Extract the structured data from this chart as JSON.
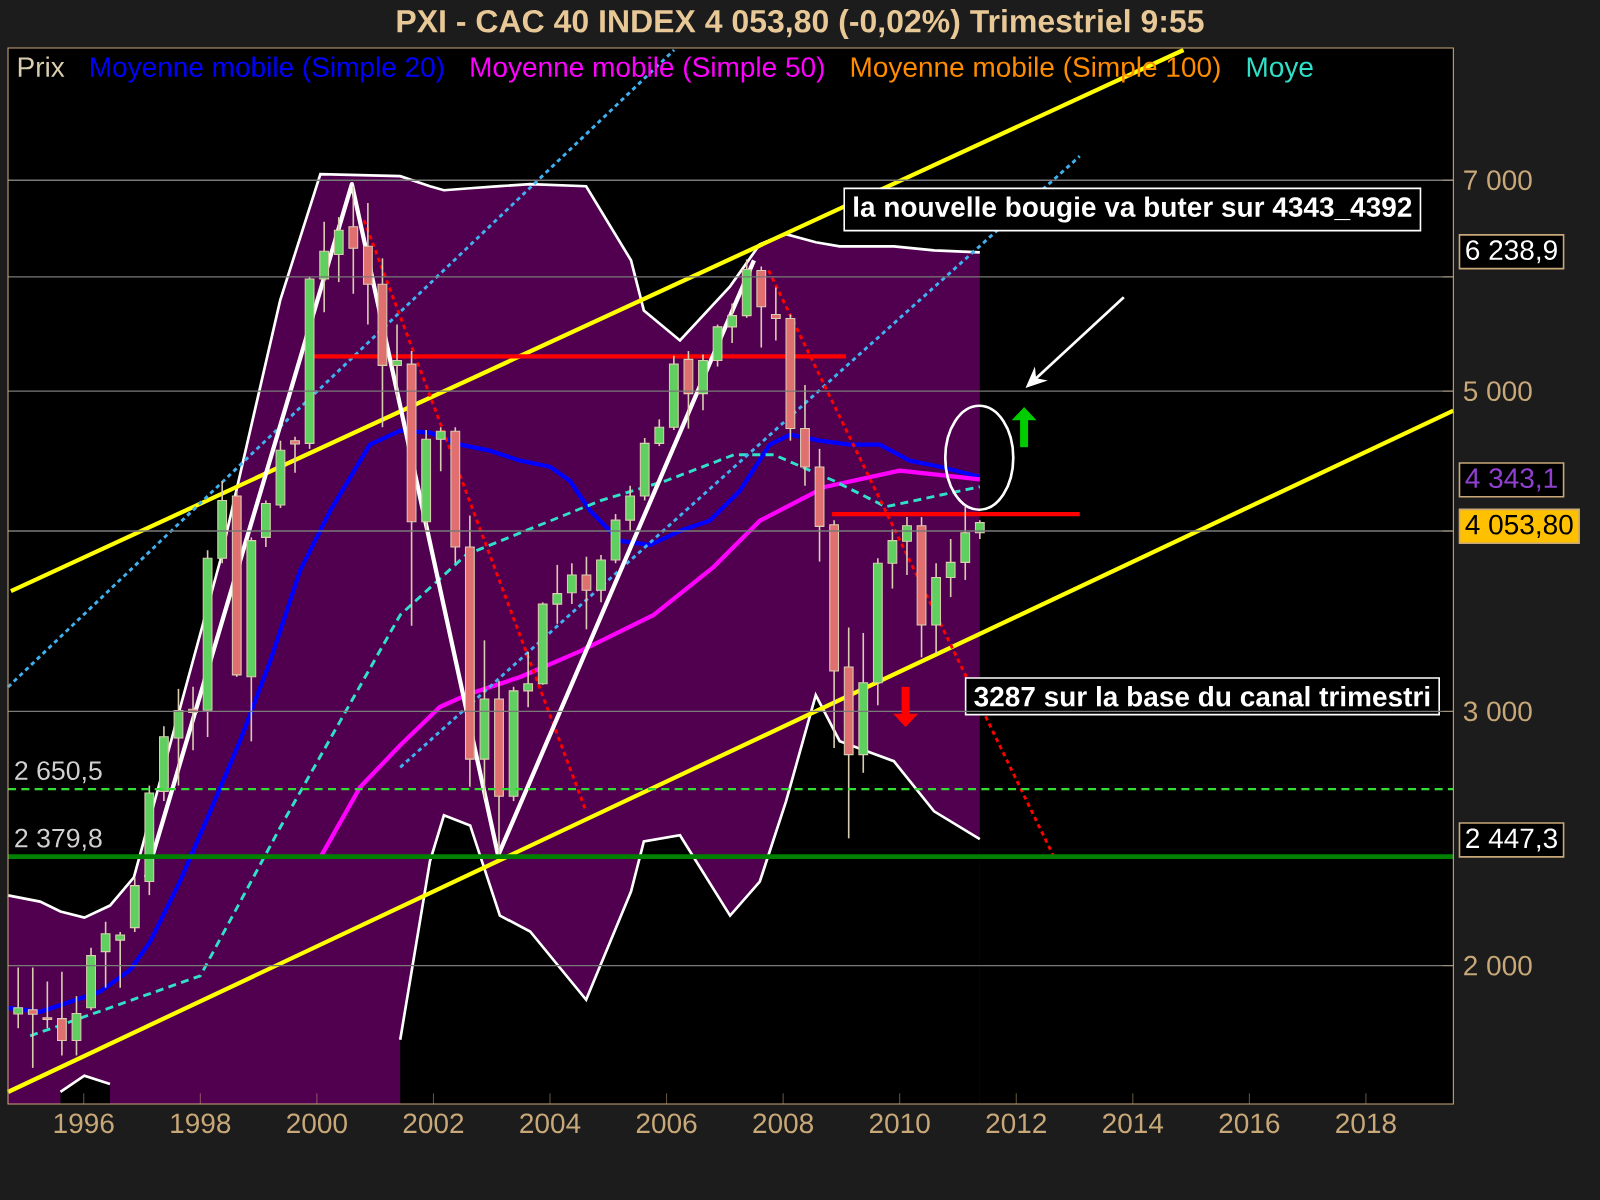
{
  "chart_data": {
    "type": "candlestick",
    "title": "PXI - CAC 40 INDEX    4 053,80 (-0,02%)    Trimestriel  9:55",
    "xlim": [
      1994.7,
      2019.5
    ],
    "ylim": [
      1604,
      8644
    ],
    "log": "y",
    "grid": "y",
    "legend": "top left",
    "xticks": [
      1996,
      1998,
      2000,
      2002,
      2004,
      2006,
      2008,
      2010,
      2012,
      2014,
      2016,
      2018
    ],
    "yticks": [
      {
        "value": 2000,
        "label": "2 000"
      },
      {
        "value": 3000,
        "label": "3 000"
      },
      {
        "value": 4000,
        "label": null
      },
      {
        "value": 5000,
        "label": "5 000"
      },
      {
        "value": 6000,
        "label": null
      },
      {
        "value": 7000,
        "label": "7 000"
      }
    ],
    "ref_lines": [
      {
        "axis": "y",
        "value": 2650.5,
        "label": "2 650,5",
        "color": "#33dd33",
        "line_style": "dashed"
      },
      {
        "axis": "y",
        "value": 2379.8,
        "label": "2 379,8",
        "color": "#008000",
        "line_style": "solid"
      }
    ],
    "annotations": [
      "la nouvelle bougie va buter sur 4343_4392",
      "3287 sur la base du canal trimestri",
      "6 238,9",
      "4 343,1",
      "4 053,80",
      "2 447,3"
    ],
    "series": [
      {
        "name": "Prix",
        "color": "#d9cdb0",
        "x": [
          1994.875,
          1995.125,
          1995.375,
          1995.625,
          1995.875,
          1996.125,
          1996.375,
          1996.625,
          1996.875,
          1997.125,
          1997.375,
          1997.625,
          1997.875,
          1998.125,
          1998.375,
          1998.625,
          1998.875,
          1999.125,
          1999.375,
          1999.625,
          1999.875,
          2000.125,
          2000.375,
          2000.625,
          2000.875,
          2001.125,
          2001.375,
          2001.625,
          2001.875,
          2002.125,
          2002.375,
          2002.625,
          2002.875,
          2003.125,
          2003.375,
          2003.625,
          2003.875,
          2004.125,
          2004.375,
          2004.625,
          2004.875,
          2005.125,
          2005.375,
          2005.625,
          2005.875,
          2006.125,
          2006.375,
          2006.625,
          2006.875,
          2007.125,
          2007.375,
          2007.625,
          2007.875,
          2008.125,
          2008.375,
          2008.625,
          2008.875,
          2009.125,
          2009.375,
          2009.625,
          2009.875,
          2010.125,
          2010.375,
          2010.625,
          2010.875,
          2011.125,
          2011.375
        ],
        "ohlc": [
          [
            1852,
            1994,
            1810,
            1870
          ],
          [
            1864,
            1994,
            1699,
            1851
          ],
          [
            1840,
            1950,
            1810,
            1835
          ],
          [
            1838,
            1981,
            1733,
            1775
          ],
          [
            1775,
            1905,
            1733,
            1853
          ],
          [
            1870,
            2058,
            1863,
            2032
          ],
          [
            2045,
            2145,
            1931,
            2104
          ],
          [
            2083,
            2110,
            1931,
            2100
          ],
          [
            2125,
            2300,
            2110,
            2272
          ],
          [
            2287,
            2665,
            2238,
            2634
          ],
          [
            2640,
            2930,
            2600,
            2881
          ],
          [
            2875,
            3110,
            2665,
            3004
          ],
          [
            3010,
            3120,
            2820,
            2995
          ],
          [
            3005,
            3880,
            2880,
            3830
          ],
          [
            3830,
            4330,
            3800,
            4200
          ],
          [
            4230,
            4260,
            3170,
            3180
          ],
          [
            3170,
            3960,
            2860,
            3940
          ],
          [
            3960,
            4200,
            3900,
            4180
          ],
          [
            4170,
            4620,
            4150,
            4550
          ],
          [
            4620,
            4650,
            4390,
            4595
          ],
          [
            4600,
            6000,
            4560,
            5980
          ],
          [
            5980,
            6550,
            5670,
            6250
          ],
          [
            6217,
            6600,
            5950,
            6463
          ],
          [
            6500,
            6930,
            5840,
            6280
          ],
          [
            6300,
            6750,
            5560,
            5930
          ],
          [
            5930,
            6180,
            4720,
            5210
          ],
          [
            5210,
            5560,
            4950,
            5250
          ],
          [
            5220,
            5330,
            3440,
            4060
          ],
          [
            4060,
            4700,
            4000,
            4630
          ],
          [
            4630,
            4720,
            4400,
            4690
          ],
          [
            4690,
            4720,
            3800,
            3900
          ],
          [
            3900,
            4100,
            2660,
            2780
          ],
          [
            2780,
            3360,
            2610,
            3060
          ],
          [
            3060,
            3150,
            2380,
            2620
          ],
          [
            2620,
            3120,
            2600,
            3100
          ],
          [
            3100,
            3300,
            3020,
            3135
          ],
          [
            3135,
            3570,
            3130,
            3560
          ],
          [
            3560,
            3790,
            3450,
            3620
          ],
          [
            3625,
            3800,
            3560,
            3730
          ],
          [
            3730,
            3840,
            3420,
            3640
          ],
          [
            3640,
            3850,
            3570,
            3820
          ],
          [
            3820,
            4110,
            3800,
            4070
          ],
          [
            4070,
            4300,
            4000,
            4230
          ],
          [
            4230,
            4640,
            4200,
            4600
          ],
          [
            4600,
            4780,
            4580,
            4720
          ],
          [
            4720,
            5290,
            4700,
            5220
          ],
          [
            5260,
            5330,
            4710,
            4980
          ],
          [
            4980,
            5300,
            4850,
            5250
          ],
          [
            5250,
            5560,
            5200,
            5540
          ],
          [
            5540,
            5750,
            5400,
            5640
          ],
          [
            5640,
            6170,
            5620,
            6070
          ],
          [
            6060,
            6100,
            5360,
            5720
          ],
          [
            5650,
            5900,
            5420,
            5614
          ],
          [
            5614,
            5650,
            4620,
            4710
          ],
          [
            4710,
            5050,
            4300,
            4430
          ],
          [
            4430,
            4560,
            3810,
            4030
          ],
          [
            4040,
            4070,
            2830,
            3200
          ],
          [
            3220,
            3430,
            2450,
            2800
          ],
          [
            2800,
            3400,
            2720,
            3140
          ],
          [
            3140,
            3830,
            3030,
            3800
          ],
          [
            3800,
            4010,
            3650,
            3940
          ],
          [
            3936,
            4090,
            3730,
            4034
          ],
          [
            4034,
            4090,
            3270,
            3443
          ],
          [
            3443,
            3800,
            3290,
            3715
          ],
          [
            3715,
            3950,
            3600,
            3805
          ],
          [
            3805,
            4160,
            3700,
            3989
          ],
          [
            3990,
            4070,
            3950,
            4053.8
          ]
        ],
        "colors": [
          "#5fcf5f",
          "#e07070",
          "#e07070",
          "#e07070",
          "#5fcf5f",
          "#5fcf5f",
          "#5fcf5f",
          "#5fcf5f",
          "#5fcf5f",
          "#5fcf5f",
          "#5fcf5f",
          "#5fcf5f",
          "#e07070",
          "#5fcf5f",
          "#5fcf5f",
          "#e07070",
          "#5fcf5f",
          "#5fcf5f",
          "#5fcf5f",
          "#e07070",
          "#5fcf5f",
          "#5fcf5f",
          "#5fcf5f",
          "#e07070",
          "#e07070",
          "#e07070",
          "#5fcf5f",
          "#e07070",
          "#5fcf5f",
          "#5fcf5f",
          "#e07070",
          "#e07070",
          "#5fcf5f",
          "#e07070",
          "#5fcf5f",
          "#5fcf5f",
          "#5fcf5f",
          "#5fcf5f",
          "#5fcf5f",
          "#e07070",
          "#5fcf5f",
          "#5fcf5f",
          "#5fcf5f",
          "#5fcf5f",
          "#5fcf5f",
          "#5fcf5f",
          "#e07070",
          "#5fcf5f",
          "#5fcf5f",
          "#5fcf5f",
          "#5fcf5f",
          "#e07070",
          "#e07070",
          "#e07070",
          "#e07070",
          "#e07070",
          "#e07070",
          "#e07070",
          "#5fcf5f",
          "#5fcf5f",
          "#5fcf5f",
          "#5fcf5f",
          "#e07070",
          "#5fcf5f",
          "#5fcf5f",
          "#5fcf5f",
          "#5fcf5f"
        ]
      },
      {
        "name": "Moyenne mobile (Simple 20)",
        "type": "line",
        "color": "#0000ff",
        "x": [
          1994.7,
          1995.25,
          1995.77,
          1996.28,
          1996.8,
          1997.14,
          1997.65,
          1998.17,
          1998.68,
          1999.2,
          1999.71,
          2000.23,
          2000.91,
          2001.43,
          2001.94,
          2002.46,
          2002.97,
          2003.49,
          2004.0,
          2004.34,
          2004.69,
          2005.2,
          2005.72,
          2006.23,
          2006.74,
          2007.26,
          2007.77,
          2008.12,
          2008.63,
          2009.14,
          2009.66,
          2010.17,
          2010.69,
          2011.375
        ],
        "values": [
          1870,
          1858,
          1888,
          1919,
          1987,
          2078,
          2287,
          2558,
          2861,
          3251,
          3754,
          4132,
          4591,
          4695,
          4680,
          4591,
          4547,
          4475,
          4432,
          4334,
          4132,
          3938,
          3913,
          4001,
          4066,
          4266,
          4591,
          4665,
          4620,
          4591,
          4591,
          4475,
          4432,
          4362
        ]
      },
      {
        "name": "Moyenne mobile (Simple 50)",
        "type": "line",
        "color": "#ff00ff",
        "x": [
          2000.06,
          2000.74,
          2001.43,
          2002.11,
          2002.56,
          2003.49,
          2004.52,
          2005.78,
          2006.81,
          2007.6,
          2008.73,
          2010.0,
          2011.375
        ],
        "values": [
          2377,
          2658,
          2842,
          3021,
          3079,
          3169,
          3303,
          3499,
          3778,
          4066,
          4293,
          4404,
          4343.1
        ]
      },
      {
        "name": "Moyenne mobile (Simple 100)",
        "type": "line",
        "color": "#ff8c00"
      },
      {
        "name": "Moye",
        "type": "line",
        "color": "#30e0c8",
        "line_style": "dashed",
        "x": [
          1995.08,
          1998.0,
          1999.37,
          2000.4,
          2001.43,
          2002.56,
          2004.86,
          2005.99,
          2007.16,
          2007.84,
          2008.87,
          2009.76,
          2011.375
        ],
        "values": [
          1788,
          1968,
          2493,
          2954,
          3499,
          3851,
          4198,
          4334,
          4518,
          4518,
          4334,
          4158,
          4293
        ]
      },
      {
        "type": "area",
        "color": "#50004f",
        "x": [
          1994.7,
          1995.25,
          1995.6,
          1996.01,
          1996.45,
          1996.86,
          1998.34,
          1999.37,
          2000.06,
          2001.43,
          2001.94,
          2002.18,
          2002.63,
          2003.14,
          2003.66,
          2004.62,
          2005.39,
          2005.61,
          2006.23,
          2007.09,
          2007.6,
          2008.05,
          2008.56,
          2008.97,
          2009.9,
          2010.59,
          2011.375
        ],
        "values": [
          2237,
          2215,
          2180,
          2159,
          2201,
          2302,
          3814,
          5779,
          7068,
          7045,
          6934,
          6889,
          6911,
          6934,
          6956,
          6934,
          6160,
          5687,
          5421,
          5910,
          6320,
          6422,
          6340,
          6299,
          6299,
          6259,
          6238.9
        ]
      },
      {
        "type": "area",
        "color": "#000000",
        "x": [
          1995.6,
          1996.01,
          1996.45,
          1996.86,
          1998.34,
          1999.37,
          2000.06,
          2001.43,
          2001.94,
          2002.18,
          2002.63,
          2003.14,
          2003.66,
          2004.62,
          2005.39,
          2005.61,
          2006.23,
          2007.09,
          2007.6,
          2008.05,
          2008.56,
          2008.97,
          2009.9,
          2010.59,
          2011.375
        ],
        "values": [
          1635,
          1678,
          1656,
          null,
          null,
          null,
          null,
          1777,
          2362,
          2542,
          2501,
          2166,
          2112,
          1894,
          2251,
          2438,
          2462,
          2166,
          2287,
          2599,
          3079,
          2861,
          2771,
          2558,
          2447.3
        ]
      },
      {
        "type": "line",
        "color": "#ffff00",
        "x": [
          1994.75,
          2014.87
        ],
        "values": [
          3635,
          8616
        ]
      },
      {
        "type": "line",
        "color": "#ffff00",
        "x": [
          1994.7,
          2019.5
        ],
        "values": [
          1635,
          4847
        ]
      },
      {
        "type": "line",
        "color": "#40b0f0",
        "line_style": "dotted",
        "x": [
          1994.7,
          2006.13
        ],
        "values": [
          3119,
          8616
        ]
      },
      {
        "type": "line",
        "color": "#40b0f0",
        "line_style": "dotted",
        "x": [
          2001.43,
          2013.09
        ],
        "values": [
          2744,
          7274
        ]
      },
      {
        "type": "line",
        "color": "#ff0000",
        "x": [
          1999.85,
          2009.08
        ],
        "values": [
          5284,
          5284
        ]
      },
      {
        "type": "line",
        "color": "#ff0000",
        "x": [
          2008.84,
          2013.09
        ],
        "values": [
          4109,
          4109
        ]
      },
      {
        "type": "line",
        "color": "#ff0000",
        "line_style": "dotted",
        "x": [
          2000.81,
          2004.62
        ],
        "values": [
          6567,
          2558
        ]
      },
      {
        "type": "line",
        "color": "#ff0000",
        "line_style": "dotted",
        "x": [
          2007.75,
          2012.65
        ],
        "values": [
          6062,
          2377
        ]
      },
      {
        "type": "line",
        "color": "#ffffff",
        "x": [
          1997.07,
          2000.6,
          2003.11,
          2007.5
        ],
        "values": [
          2302,
          6956,
          2384,
          6160
        ]
      }
    ]
  }
}
